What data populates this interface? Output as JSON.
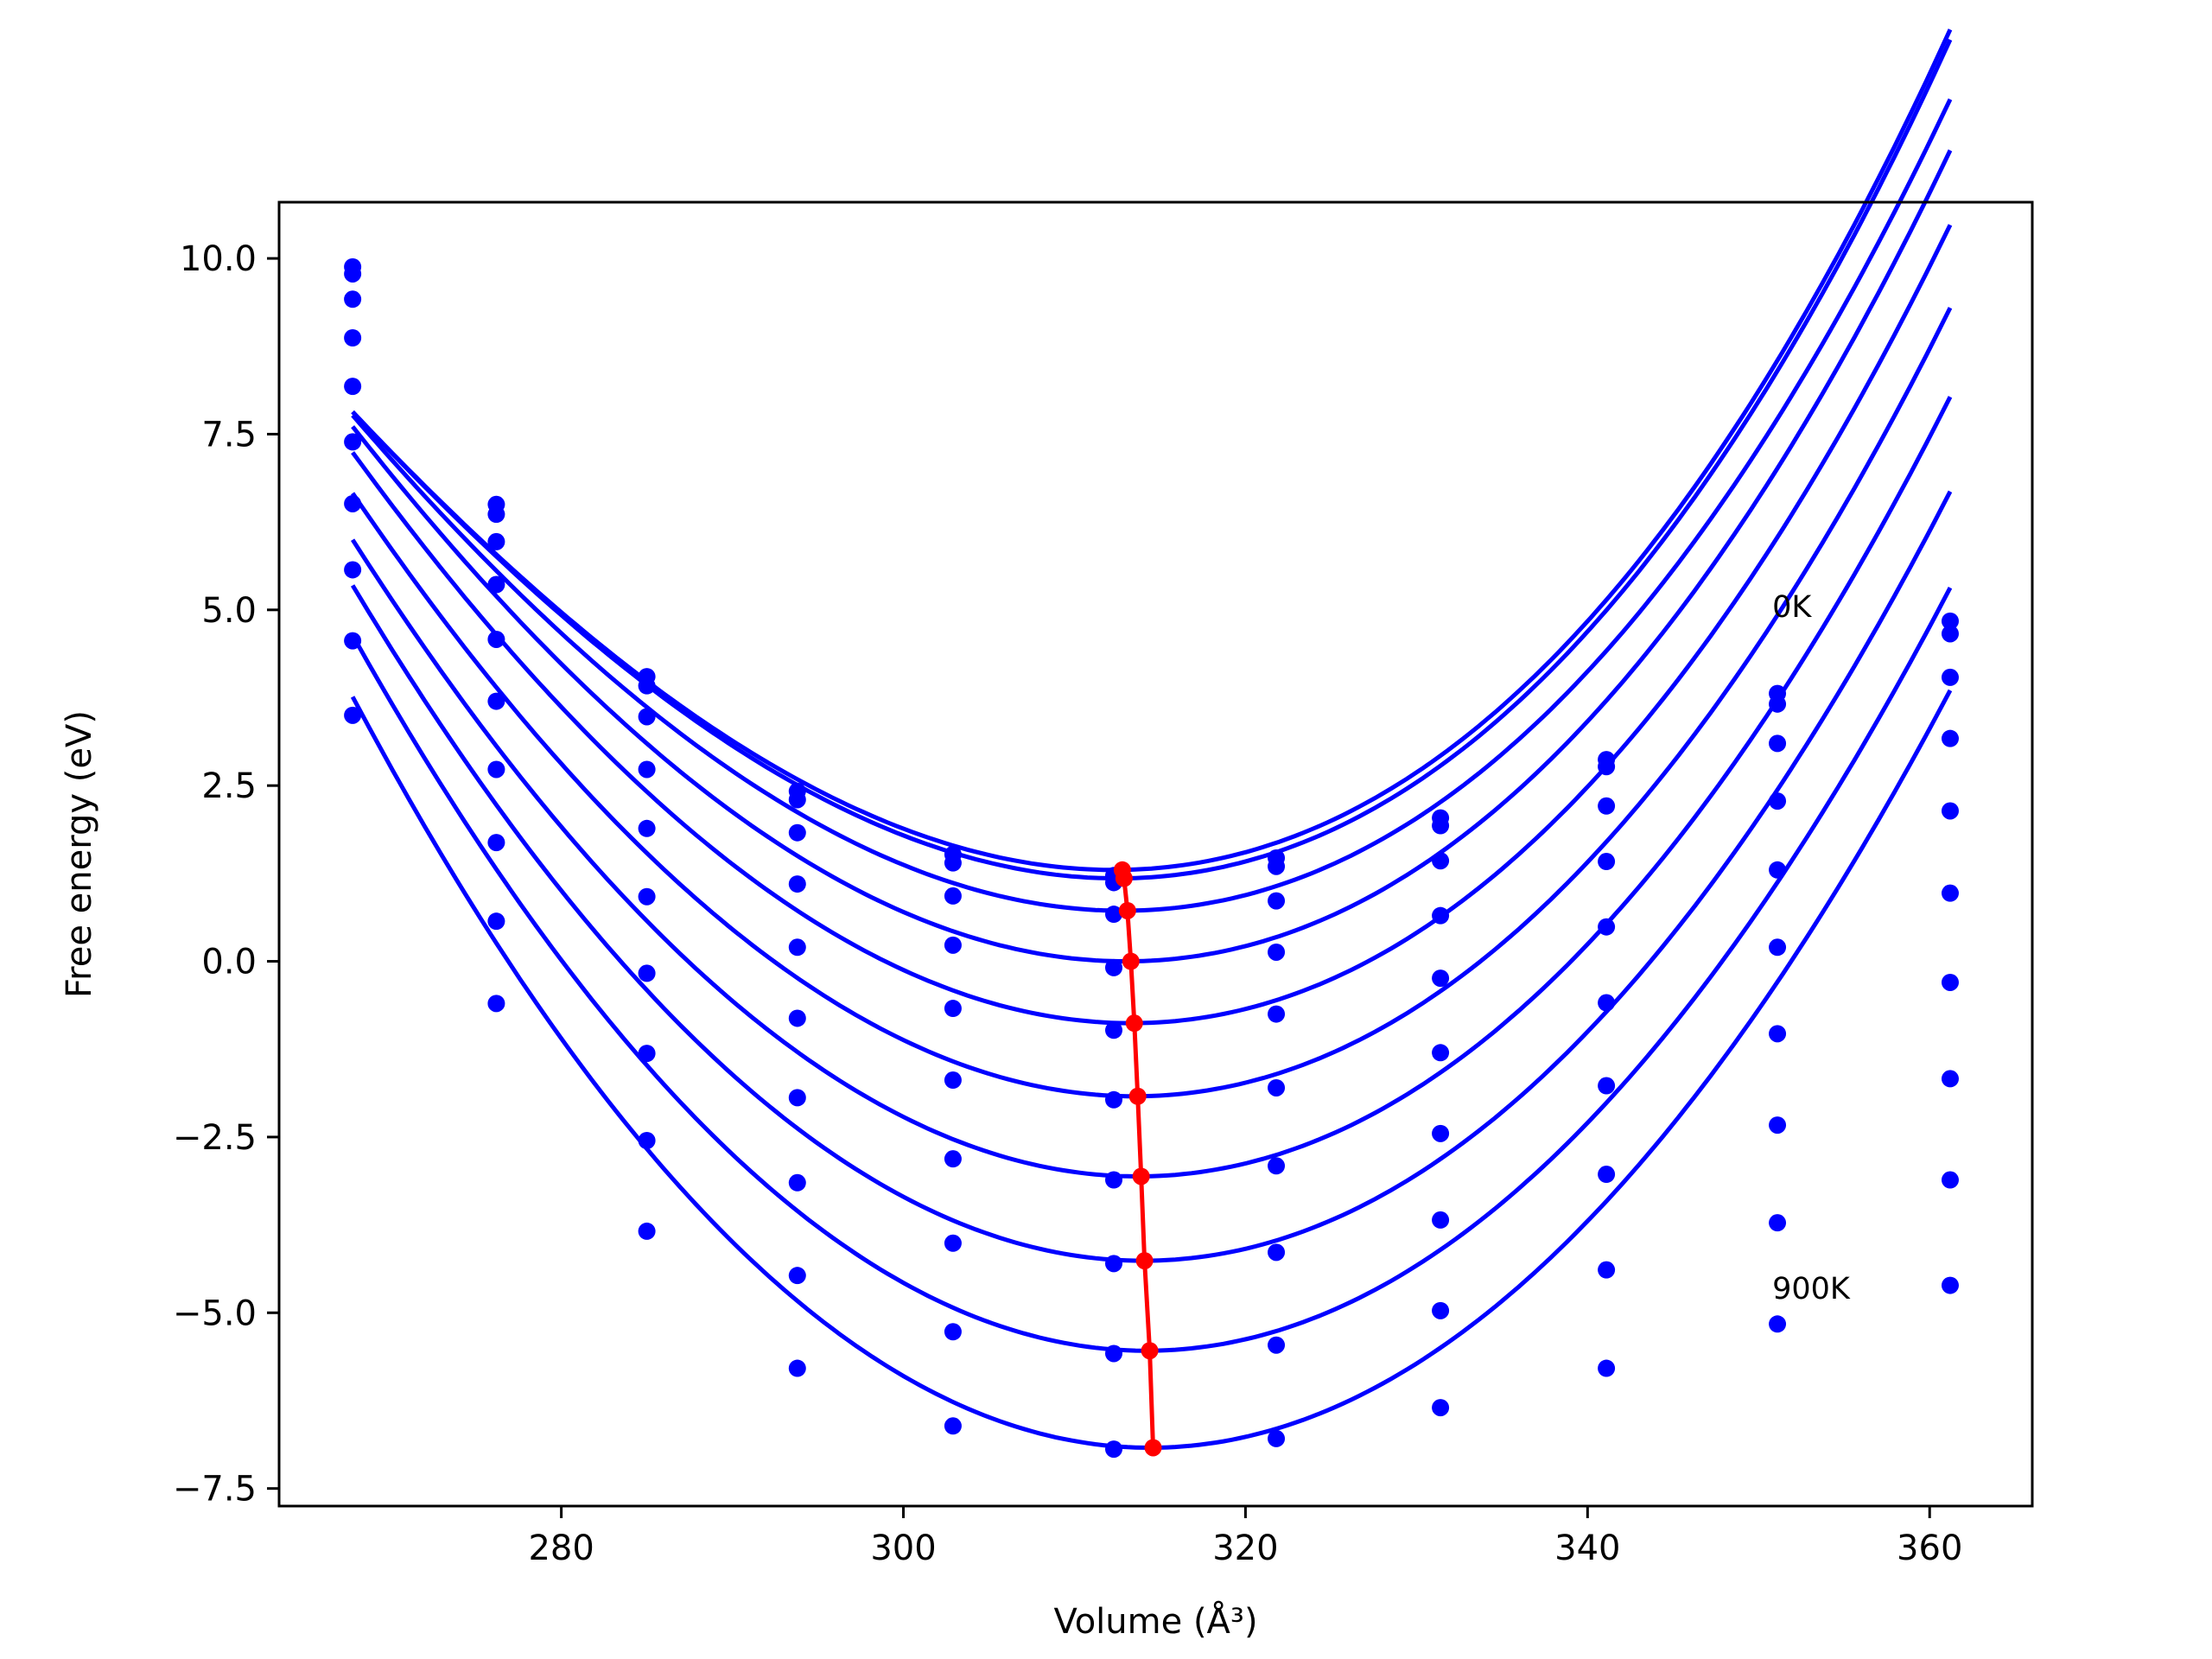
{
  "chart_data": {
    "type": "line",
    "xlabel": "Volume (Å³)",
    "ylabel": "Free energy (eV)",
    "xlim": [
      263.5,
      366.0
    ],
    "ylim": [
      -7.75,
      10.8
    ],
    "xticks": [
      280,
      300,
      320,
      340,
      360
    ],
    "yticks": [
      10.0,
      7.5,
      5.0,
      2.5,
      0.0,
      -2.5,
      -5.0,
      -7.5
    ],
    "xtick_labels": [
      "280",
      "300",
      "320",
      "340",
      "360"
    ],
    "ytick_labels": [
      "10.0",
      "7.5",
      "5.0",
      "2.5",
      "0.0",
      "−2.5",
      "−5.0",
      "−7.5"
    ],
    "grid": false,
    "legend": "none",
    "colors": {
      "series": "#0000ff",
      "minima": "#ff0000"
    },
    "annotations": [
      {
        "text": "0K",
        "x": 350.8,
        "y": 4.9
      },
      {
        "text": "900K",
        "x": 350.8,
        "y": -4.8
      }
    ],
    "volumes": [
      267.8,
      276.2,
      285.0,
      293.8,
      302.9,
      312.3,
      321.8,
      331.4,
      341.1,
      351.1,
      361.2
    ],
    "series": [
      {
        "values": [
          9.88,
          6.5,
          4.05,
          2.42,
          1.52,
          1.22,
          1.47,
          2.04,
          2.87,
          3.81,
          4.84
        ],
        "fit": {
          "v0": 312.3,
          "e0": 1.3,
          "a": 0.004105,
          "b": 1.83e-05
        }
      },
      {
        "values": [
          9.78,
          6.36,
          3.92,
          2.3,
          1.4,
          1.12,
          1.35,
          1.93,
          2.77,
          3.66,
          4.66
        ],
        "fit": {
          "v0": 312.5,
          "e0": 1.18,
          "a": 0.00414,
          "b": 1.83e-05
        }
      },
      {
        "values": [
          9.42,
          5.97,
          3.48,
          1.83,
          0.93,
          0.67,
          0.86,
          1.43,
          2.21,
          3.1,
          4.04
        ],
        "fit": {
          "v0": 312.8,
          "e0": 0.72,
          "a": 0.004178,
          "b": 1.55e-05
        }
      },
      {
        "values": [
          8.87,
          5.36,
          2.73,
          1.1,
          0.23,
          -0.09,
          0.13,
          0.65,
          1.42,
          2.28,
          3.17
        ],
        "fit": {
          "v0": 313.0,
          "e0": 0.0,
          "a": 0.004325,
          "b": 1.33e-05
        }
      },
      {
        "values": [
          8.18,
          4.58,
          1.89,
          0.2,
          -0.67,
          -0.98,
          -0.75,
          -0.24,
          0.49,
          1.3,
          2.14
        ],
        "fit": {
          "v0": 313.3,
          "e0": -0.88,
          "a": 0.004423,
          "b": 1.1e-05
        }
      },
      {
        "values": [
          7.39,
          3.7,
          0.92,
          -0.81,
          -1.69,
          -1.97,
          -1.8,
          -1.3,
          -0.59,
          0.2,
          0.97
        ],
        "fit": {
          "v0": 313.5,
          "e0": -1.92,
          "a": 0.00451,
          "b": 8.8e-06
        }
      },
      {
        "values": [
          6.51,
          2.73,
          -0.17,
          -1.94,
          -2.81,
          -3.11,
          -2.91,
          -2.45,
          -1.77,
          -1.03,
          -0.3
        ],
        "fit": {
          "v0": 313.7,
          "e0": -3.06,
          "a": 0.004602,
          "b": 6.6e-06
        }
      },
      {
        "values": [
          5.57,
          1.69,
          -1.31,
          -3.15,
          -4.01,
          -4.3,
          -4.14,
          -3.68,
          -3.03,
          -2.33,
          -1.67
        ],
        "fit": {
          "v0": 314.0,
          "e0": -4.26,
          "a": 0.004705,
          "b": 4.4e-06
        }
      },
      {
        "values": [
          4.56,
          0.57,
          -2.55,
          -4.47,
          -5.27,
          -5.58,
          -5.46,
          -4.97,
          -4.39,
          -3.72,
          -3.11
        ],
        "fit": {
          "v0": 314.2,
          "e0": -5.54,
          "a": 0.00482,
          "b": 2e-06
        }
      },
      {
        "values": [
          3.5,
          -0.6,
          -3.84,
          -5.79,
          -6.61,
          -6.94,
          -6.79,
          -6.35,
          -5.79,
          -5.16,
          -4.61
        ],
        "fit": {
          "v0": 314.4,
          "e0": -6.92,
          "a": 0.00492,
          "b": 0.0
        }
      }
    ],
    "minima": {
      "x": [
        312.8,
        312.9,
        313.1,
        313.3,
        313.5,
        313.7,
        313.9,
        314.1,
        314.4,
        314.6
      ],
      "y": [
        1.3,
        1.18,
        0.72,
        0.0,
        -0.88,
        -1.92,
        -3.06,
        -4.26,
        -5.54,
        -6.92
      ]
    }
  }
}
